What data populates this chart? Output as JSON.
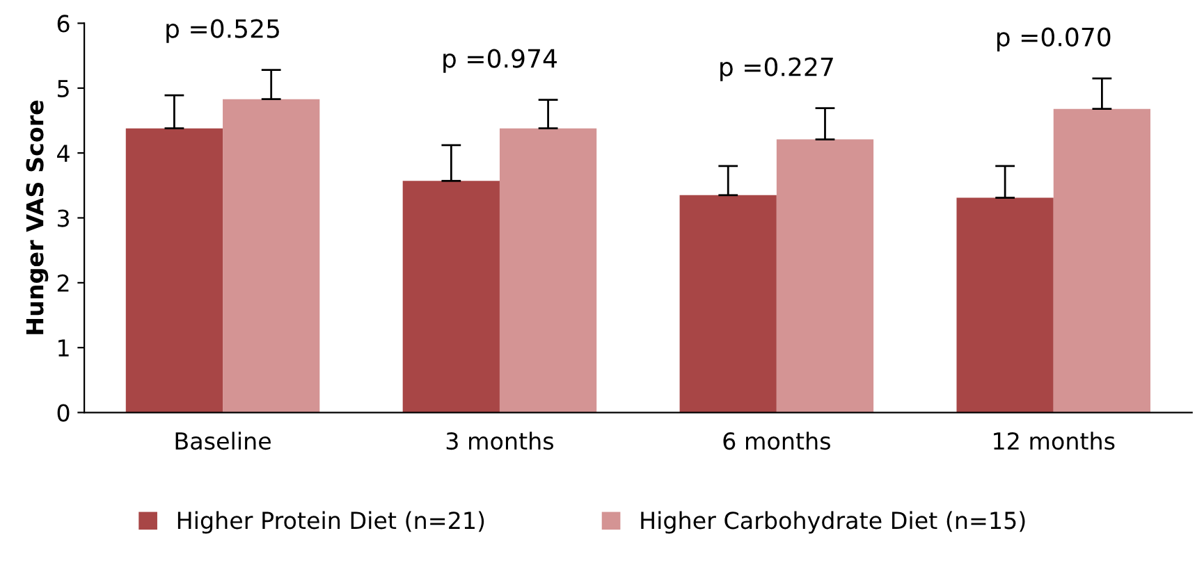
{
  "chart_data": {
    "type": "bar",
    "ylabel": "Hunger VAS Score",
    "categories": [
      "Baseline",
      "3 months",
      "6 months",
      "12 months"
    ],
    "series": [
      {
        "name": "Higher Protein Diet (n=21)",
        "color": "#a84646",
        "values": [
          4.38,
          3.57,
          3.35,
          3.31
        ],
        "errors": [
          [
            4.38,
            4.89
          ],
          [
            3.57,
            4.12
          ],
          [
            3.35,
            3.8
          ],
          [
            3.31,
            3.8
          ]
        ]
      },
      {
        "name": "Higher Carbohydrate Diet (n=15)",
        "color": "#d49494",
        "values": [
          4.83,
          4.38,
          4.21,
          4.68
        ],
        "errors": [
          [
            4.83,
            5.28
          ],
          [
            4.38,
            4.82
          ],
          [
            4.21,
            4.69
          ],
          [
            4.68,
            5.15
          ]
        ]
      }
    ],
    "annotations": [
      "p =0.525",
      "p =0.974",
      "p =0.227",
      "p =0.070"
    ],
    "ylim": [
      0,
      6
    ],
    "yticks": [
      0,
      1,
      2,
      3,
      4,
      5,
      6
    ],
    "grid": false,
    "legend": "bottom"
  }
}
